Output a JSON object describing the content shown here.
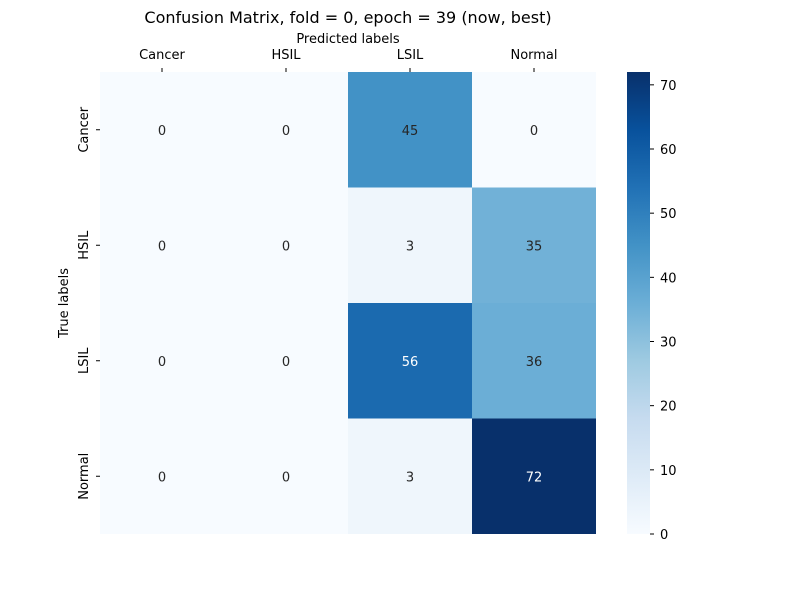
{
  "chart_data": {
    "type": "heatmap",
    "title": "Confusion Matrix, fold = 0, epoch = 39 (now, best)",
    "xlabel": "Predicted labels",
    "ylabel": "True labels",
    "x_categories": [
      "Cancer",
      "HSIL",
      "LSIL",
      "Normal"
    ],
    "y_categories": [
      "Cancer",
      "HSIL",
      "LSIL",
      "Normal"
    ],
    "values": [
      [
        0,
        0,
        45,
        0
      ],
      [
        0,
        0,
        3,
        35
      ],
      [
        0,
        0,
        56,
        36
      ],
      [
        0,
        0,
        3,
        72
      ]
    ],
    "colorbar": {
      "colormap": "Blues",
      "range": [
        0,
        72
      ],
      "ticks": [
        0,
        10,
        20,
        30,
        40,
        50,
        60,
        70
      ]
    },
    "x_axis_position": "top",
    "grid": false,
    "legend": "colorbar-right"
  }
}
